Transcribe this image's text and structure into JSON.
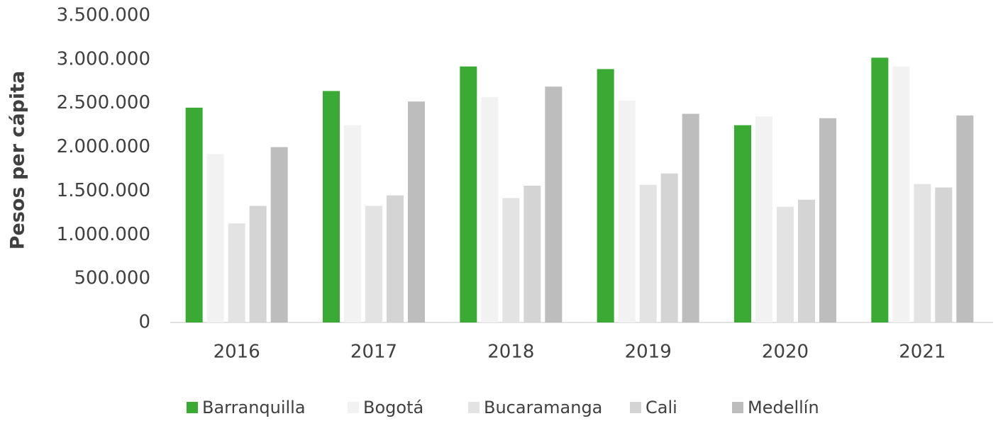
{
  "chart_data": {
    "type": "bar",
    "y_label": "Pesos per cápita",
    "categories": [
      "2016",
      "2017",
      "2018",
      "2019",
      "2020",
      "2021"
    ],
    "series": [
      {
        "name": "Barranquilla",
        "color": "#3aaa35",
        "values": [
          2450000,
          2640000,
          2920000,
          2890000,
          2250000,
          3020000
        ]
      },
      {
        "name": "Bogotá",
        "color": "#f2f2f2",
        "values": [
          1920000,
          2250000,
          2570000,
          2530000,
          2350000,
          2920000
        ]
      },
      {
        "name": "Bucaramanga",
        "color": "#e3e3e3",
        "values": [
          1130000,
          1330000,
          1420000,
          1570000,
          1320000,
          1580000
        ]
      },
      {
        "name": "Cali",
        "color": "#d4d4d4",
        "values": [
          1330000,
          1450000,
          1560000,
          1700000,
          1400000,
          1540000
        ]
      },
      {
        "name": "Medellín",
        "color": "#bdbdbd",
        "values": [
          2000000,
          2520000,
          2690000,
          2380000,
          2330000,
          2360000
        ]
      }
    ],
    "ylim": [
      0,
      3500000
    ],
    "yticks": [
      0,
      {
        "value": 500000,
        "label": "500.000"
      },
      {
        "value": 1000000,
        "label": "1.000.000"
      },
      {
        "value": 1500000,
        "label": "1.500.000"
      },
      {
        "value": 2000000,
        "label": "2.000.000"
      },
      {
        "value": 2500000,
        "label": "2.500.000"
      },
      {
        "value": 3000000,
        "label": "3.000.000"
      },
      {
        "value": 3500000,
        "label": "3.500.000"
      }
    ],
    "legend": "bottom"
  }
}
